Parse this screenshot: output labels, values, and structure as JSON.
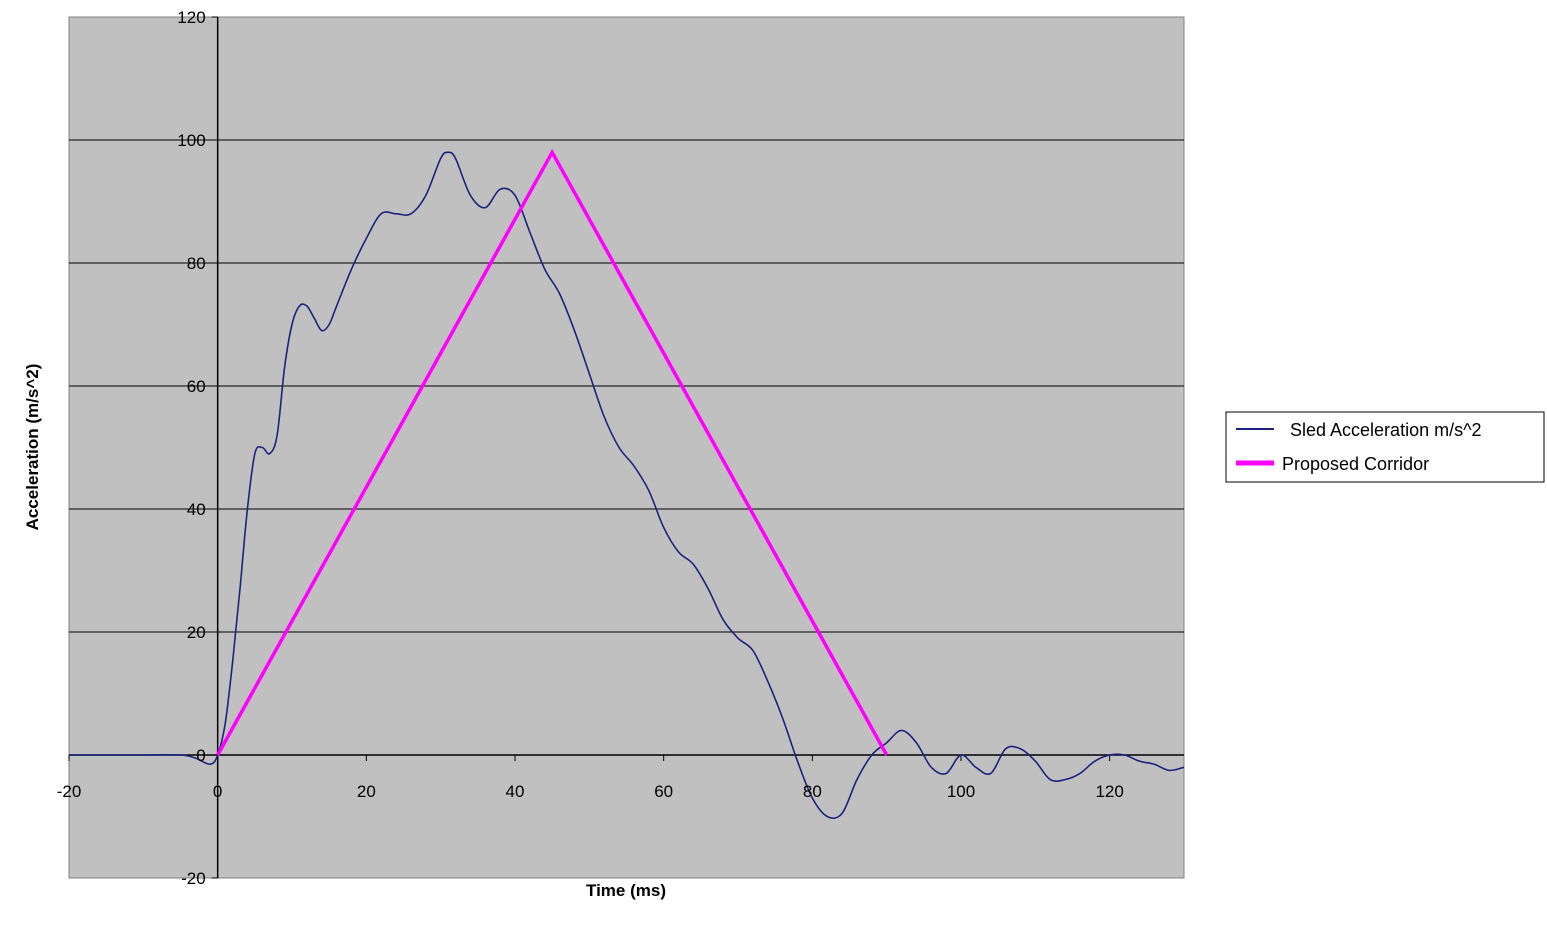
{
  "chart_data": {
    "type": "line",
    "title": "",
    "xlabel": "Time (ms)",
    "ylabel": "Acceleration (m/s^2)",
    "xlim": [
      -20,
      130
    ],
    "ylim": [
      -20,
      120
    ],
    "xticks": [
      -20,
      0,
      20,
      40,
      60,
      80,
      100,
      120
    ],
    "yticks": [
      -20,
      0,
      20,
      40,
      60,
      80,
      100,
      120
    ],
    "xtick_labels": [
      "-20",
      "0",
      "20",
      "40",
      "60",
      "80",
      "100",
      "120"
    ],
    "ytick_labels": [
      "-20",
      "0",
      "20",
      "40",
      "60",
      "80",
      "100",
      "120"
    ],
    "grid": "horizontal",
    "plot_background": "#c0c0c0",
    "legend_position": "right",
    "series": [
      {
        "name": "Sled Acceleration  m/s^2",
        "color": "#1a237e",
        "x": [
          -20,
          -10,
          -5,
          -3,
          -1,
          0,
          1,
          2,
          3,
          4,
          5,
          6,
          7,
          8,
          9,
          10,
          11,
          12,
          13,
          14,
          15,
          16,
          18,
          20,
          22,
          24,
          26,
          28,
          30,
          31,
          32,
          34,
          36,
          38,
          40,
          42,
          44,
          46,
          48,
          50,
          52,
          54,
          56,
          58,
          60,
          62,
          64,
          66,
          68,
          70,
          72,
          74,
          76,
          78,
          80,
          82,
          84,
          86,
          88,
          90,
          92,
          94,
          96,
          98,
          100,
          102,
          104,
          106,
          108,
          110,
          112,
          114,
          116,
          118,
          120,
          122,
          124,
          126,
          128,
          130
        ],
        "values": [
          0,
          0,
          0,
          -0.5,
          -1.5,
          0,
          5,
          15,
          27,
          40,
          49,
          50,
          49,
          52,
          63,
          70,
          73,
          73,
          71,
          69,
          70,
          73,
          79,
          84,
          88,
          88,
          88,
          91,
          97,
          98,
          97,
          91,
          89,
          92,
          91,
          85,
          79,
          75,
          69,
          62,
          55,
          50,
          47,
          43,
          37,
          33,
          31,
          27,
          22,
          19,
          17,
          12,
          6,
          -1,
          -7,
          -10,
          -9.5,
          -4,
          0,
          2,
          4,
          2,
          -2,
          -3,
          0,
          -2,
          -3,
          1,
          1,
          -1,
          -4,
          -4,
          -3,
          -1,
          0,
          0,
          -1,
          -1.5,
          -2.5,
          -2
        ]
      },
      {
        "name": "Proposed Corridor",
        "color": "#ff00ff",
        "x": [
          0,
          45,
          90
        ],
        "values": [
          0,
          98,
          0
        ]
      }
    ]
  }
}
